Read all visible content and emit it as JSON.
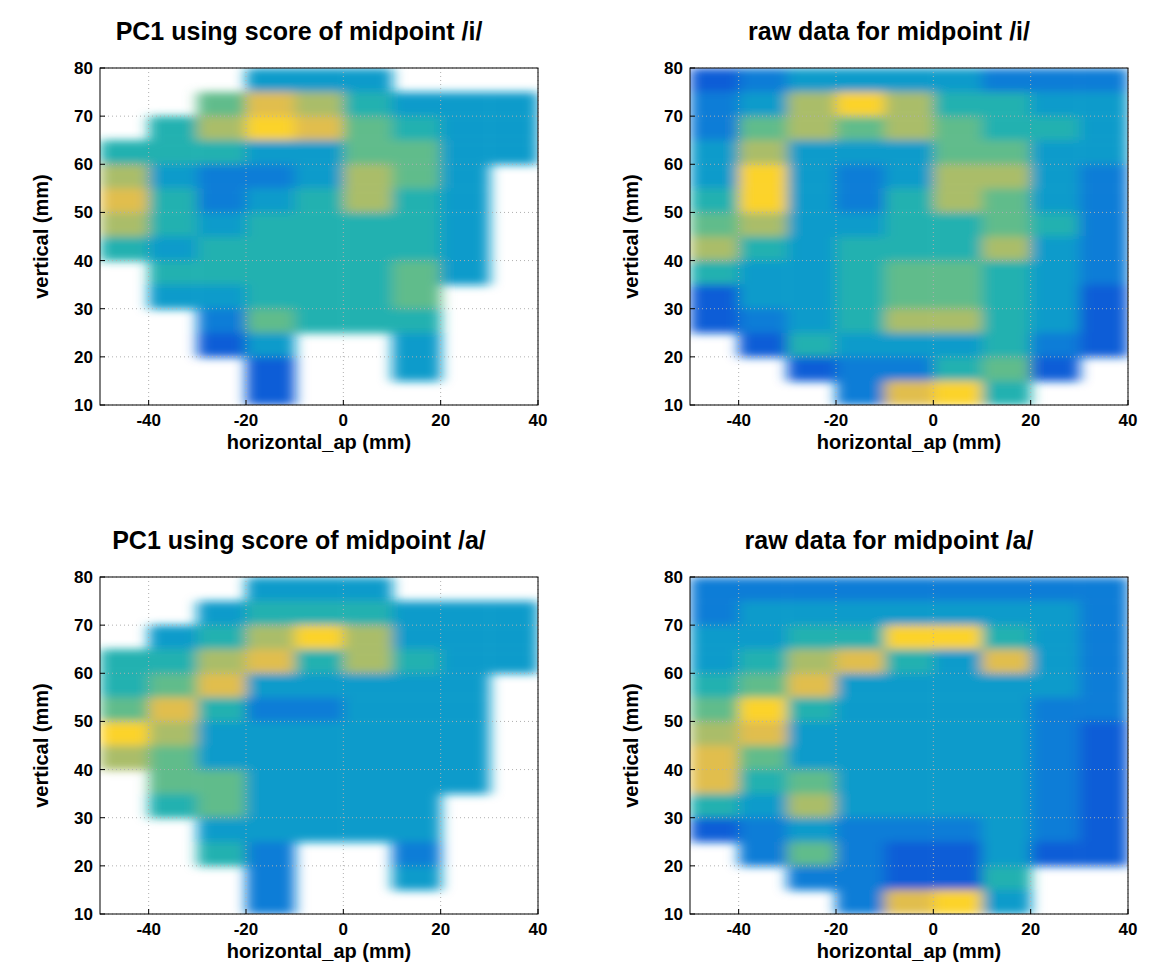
{
  "chart_data": [
    {
      "type": "heatmap",
      "title": "PC1 using score of midpoint /i/",
      "xlabel": "horizontal_ap (mm)",
      "ylabel": "vertical (mm)",
      "xlim": [
        -50,
        40
      ],
      "ylim": [
        10,
        80
      ],
      "xticks": [
        -40,
        -20,
        0,
        20,
        40
      ],
      "yticks": [
        10,
        20,
        30,
        40,
        50,
        60,
        70,
        80
      ],
      "grid": true,
      "zlim": [
        0,
        9
      ],
      "x_edges": [
        -50,
        -40,
        -30,
        -20,
        -10,
        0,
        10,
        20,
        30,
        40
      ],
      "y_edges": [
        80,
        75,
        70,
        65,
        60,
        55,
        50,
        45,
        40,
        35,
        30,
        25,
        20,
        15,
        10
      ],
      "cells": [
        [
          null,
          null,
          null,
          3,
          3,
          3,
          null,
          null,
          null
        ],
        [
          null,
          null,
          5,
          7,
          6,
          4,
          3,
          3,
          3
        ],
        [
          null,
          4,
          6,
          8,
          7,
          5,
          4,
          3,
          3
        ],
        [
          4,
          4,
          4,
          3,
          3,
          5,
          5,
          3,
          3
        ],
        [
          6,
          3,
          2,
          2,
          3,
          6,
          5,
          3,
          null
        ],
        [
          7,
          4,
          2,
          3,
          4,
          6,
          4,
          3,
          null
        ],
        [
          6,
          4,
          3,
          4,
          4,
          4,
          4,
          3,
          null
        ],
        [
          4,
          3,
          4,
          4,
          4,
          4,
          4,
          3,
          null
        ],
        [
          null,
          4,
          4,
          4,
          4,
          4,
          5,
          3,
          null
        ],
        [
          null,
          3,
          3,
          4,
          4,
          4,
          5,
          null,
          null
        ],
        [
          null,
          null,
          2,
          5,
          4,
          4,
          4,
          null,
          null
        ],
        [
          null,
          null,
          1,
          3,
          null,
          null,
          3,
          null,
          null
        ],
        [
          null,
          null,
          null,
          1,
          null,
          null,
          3,
          null,
          null
        ],
        [
          null,
          null,
          null,
          1,
          null,
          null,
          null,
          null,
          null
        ]
      ]
    },
    {
      "type": "heatmap",
      "title": "raw data for midpoint /i/",
      "xlabel": "horizontal_ap (mm)",
      "ylabel": "vertical (mm)",
      "xlim": [
        -50,
        40
      ],
      "ylim": [
        10,
        80
      ],
      "xticks": [
        -40,
        -20,
        0,
        20,
        40
      ],
      "yticks": [
        10,
        20,
        30,
        40,
        50,
        60,
        70,
        80
      ],
      "grid": true,
      "zlim": [
        0,
        9
      ],
      "x_edges": [
        -50,
        -40,
        -30,
        -20,
        -10,
        0,
        10,
        20,
        30,
        40
      ],
      "y_edges": [
        80,
        75,
        70,
        65,
        60,
        55,
        50,
        45,
        40,
        35,
        30,
        25,
        20,
        15,
        10
      ],
      "cells": [
        [
          1,
          2,
          3,
          3,
          3,
          3,
          2,
          2,
          2
        ],
        [
          2,
          3,
          6,
          8,
          6,
          4,
          4,
          3,
          3
        ],
        [
          2,
          5,
          6,
          5,
          6,
          5,
          4,
          4,
          3
        ],
        [
          3,
          6,
          3,
          3,
          3,
          5,
          5,
          3,
          3
        ],
        [
          3,
          8,
          3,
          2,
          3,
          6,
          6,
          3,
          2
        ],
        [
          4,
          8,
          3,
          2,
          4,
          6,
          5,
          3,
          2
        ],
        [
          5,
          6,
          3,
          3,
          4,
          4,
          5,
          4,
          2
        ],
        [
          6,
          4,
          3,
          4,
          4,
          4,
          6,
          3,
          2
        ],
        [
          4,
          3,
          3,
          4,
          5,
          5,
          4,
          3,
          2
        ],
        [
          1,
          3,
          3,
          4,
          5,
          5,
          4,
          3,
          1
        ],
        [
          1,
          2,
          3,
          4,
          6,
          6,
          4,
          3,
          1
        ],
        [
          null,
          1,
          4,
          3,
          3,
          3,
          4,
          2,
          1
        ],
        [
          null,
          null,
          1,
          2,
          2,
          4,
          5,
          1,
          null
        ],
        [
          null,
          null,
          null,
          2,
          7,
          8,
          4,
          null,
          null
        ]
      ]
    },
    {
      "type": "heatmap",
      "title": "PC1 using score of midpoint /a/",
      "xlabel": "horizontal_ap (mm)",
      "ylabel": "vertical (mm)",
      "xlim": [
        -50,
        40
      ],
      "ylim": [
        10,
        80
      ],
      "xticks": [
        -40,
        -20,
        0,
        20,
        40
      ],
      "yticks": [
        10,
        20,
        30,
        40,
        50,
        60,
        70,
        80
      ],
      "grid": true,
      "zlim": [
        0,
        9
      ],
      "x_edges": [
        -50,
        -40,
        -30,
        -20,
        -10,
        0,
        10,
        20,
        30,
        40
      ],
      "y_edges": [
        80,
        75,
        70,
        65,
        60,
        55,
        50,
        45,
        40,
        35,
        30,
        25,
        20,
        15,
        10
      ],
      "cells": [
        [
          null,
          null,
          null,
          3,
          3,
          3,
          null,
          null,
          null
        ],
        [
          null,
          null,
          3,
          4,
          4,
          4,
          3,
          3,
          3
        ],
        [
          null,
          3,
          4,
          6,
          8,
          6,
          3,
          3,
          3
        ],
        [
          4,
          4,
          6,
          7,
          4,
          6,
          4,
          3,
          3
        ],
        [
          4,
          5,
          7,
          3,
          3,
          3,
          3,
          3,
          null
        ],
        [
          5,
          7,
          4,
          2,
          2,
          3,
          3,
          3,
          null
        ],
        [
          8,
          6,
          3,
          3,
          3,
          3,
          3,
          3,
          null
        ],
        [
          6,
          5,
          3,
          3,
          3,
          3,
          3,
          3,
          null
        ],
        [
          null,
          5,
          5,
          3,
          3,
          3,
          3,
          3,
          null
        ],
        [
          null,
          4,
          5,
          3,
          3,
          3,
          3,
          null,
          null
        ],
        [
          null,
          null,
          3,
          3,
          3,
          3,
          3,
          null,
          null
        ],
        [
          null,
          null,
          4,
          2,
          null,
          null,
          2,
          null,
          null
        ],
        [
          null,
          null,
          null,
          2,
          null,
          null,
          3,
          null,
          null
        ],
        [
          null,
          null,
          null,
          2,
          null,
          null,
          null,
          null,
          null
        ]
      ]
    },
    {
      "type": "heatmap",
      "title": "raw data for midpoint /a/",
      "xlabel": "horizontal_ap (mm)",
      "ylabel": "vertical (mm)",
      "xlim": [
        -50,
        40
      ],
      "ylim": [
        10,
        80
      ],
      "xticks": [
        -40,
        -20,
        0,
        20,
        40
      ],
      "yticks": [
        10,
        20,
        30,
        40,
        50,
        60,
        70,
        80
      ],
      "grid": true,
      "zlim": [
        0,
        9
      ],
      "x_edges": [
        -50,
        -40,
        -30,
        -20,
        -10,
        0,
        10,
        20,
        30,
        40
      ],
      "y_edges": [
        80,
        75,
        70,
        65,
        60,
        55,
        50,
        45,
        40,
        35,
        30,
        25,
        20,
        15,
        10
      ],
      "cells": [
        [
          2,
          2,
          2,
          2,
          2,
          2,
          2,
          2,
          2
        ],
        [
          2,
          3,
          3,
          3,
          3,
          3,
          3,
          3,
          2
        ],
        [
          3,
          3,
          4,
          4,
          8,
          8,
          4,
          3,
          2
        ],
        [
          3,
          4,
          6,
          7,
          4,
          3,
          7,
          3,
          2
        ],
        [
          4,
          5,
          7,
          3,
          3,
          3,
          3,
          3,
          2
        ],
        [
          5,
          8,
          4,
          3,
          3,
          3,
          3,
          2,
          2
        ],
        [
          6,
          7,
          3,
          3,
          3,
          3,
          3,
          2,
          1
        ],
        [
          7,
          5,
          3,
          3,
          3,
          3,
          3,
          2,
          1
        ],
        [
          7,
          4,
          5,
          3,
          3,
          3,
          3,
          2,
          1
        ],
        [
          4,
          3,
          6,
          3,
          3,
          3,
          3,
          2,
          1
        ],
        [
          1,
          2,
          3,
          2,
          2,
          2,
          3,
          2,
          1
        ],
        [
          null,
          2,
          5,
          2,
          1,
          1,
          3,
          1,
          1
        ],
        [
          null,
          null,
          2,
          2,
          1,
          1,
          4,
          null,
          null
        ],
        [
          null,
          null,
          null,
          2,
          7,
          8,
          3,
          null,
          null
        ]
      ]
    }
  ]
}
